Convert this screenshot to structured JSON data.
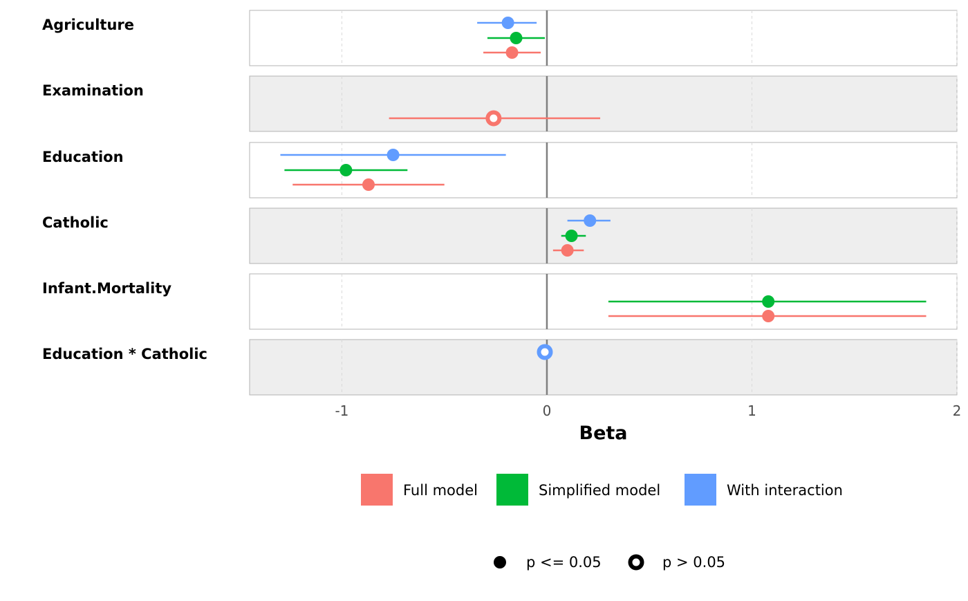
{
  "chart_data": {
    "type": "forest",
    "xlabel": "Beta",
    "xlim": [
      -1.45,
      2.0
    ],
    "xticks": [
      -1,
      0,
      1,
      2
    ],
    "xtick_labels": [
      "-1",
      "0",
      "1",
      "2"
    ],
    "reference_line": 0,
    "series": [
      {
        "name": "Full model",
        "color": "#F8766D"
      },
      {
        "name": "Simplified model",
        "color": "#00BA38"
      },
      {
        "name": "With interaction",
        "color": "#619CFF"
      }
    ],
    "terms": [
      {
        "label": "Agriculture",
        "shaded": false,
        "estimates": [
          {
            "series": "With interaction",
            "beta": -0.19,
            "low": -0.34,
            "high": -0.05,
            "significant": true
          },
          {
            "series": "Simplified model",
            "beta": -0.15,
            "low": -0.29,
            "high": -0.01,
            "significant": true
          },
          {
            "series": "Full model",
            "beta": -0.17,
            "low": -0.31,
            "high": -0.03,
            "significant": true
          }
        ]
      },
      {
        "label": "Examination",
        "shaded": true,
        "estimates": [
          {
            "series": "Full model",
            "beta": -0.26,
            "low": -0.77,
            "high": 0.26,
            "significant": false
          }
        ]
      },
      {
        "label": "Education",
        "shaded": false,
        "estimates": [
          {
            "series": "With interaction",
            "beta": -0.75,
            "low": -1.3,
            "high": -0.2,
            "significant": true
          },
          {
            "series": "Simplified model",
            "beta": -0.98,
            "low": -1.28,
            "high": -0.68,
            "significant": true
          },
          {
            "series": "Full model",
            "beta": -0.87,
            "low": -1.24,
            "high": -0.5,
            "significant": true
          }
        ]
      },
      {
        "label": "Catholic",
        "shaded": true,
        "estimates": [
          {
            "series": "With interaction",
            "beta": 0.21,
            "low": 0.1,
            "high": 0.31,
            "significant": true
          },
          {
            "series": "Simplified model",
            "beta": 0.12,
            "low": 0.07,
            "high": 0.19,
            "significant": true
          },
          {
            "series": "Full model",
            "beta": 0.1,
            "low": 0.03,
            "high": 0.18,
            "significant": true
          }
        ]
      },
      {
        "label": "Infant.Mortality",
        "shaded": false,
        "estimates": [
          {
            "series": "Simplified model",
            "beta": 1.08,
            "low": 0.3,
            "high": 1.85,
            "significant": true
          },
          {
            "series": "Full model",
            "beta": 1.08,
            "low": 0.3,
            "high": 1.85,
            "significant": true
          }
        ]
      },
      {
        "label": "Education * Catholic",
        "shaded": true,
        "estimates": [
          {
            "series": "With interaction",
            "beta": -0.01,
            "low": -0.02,
            "high": 0.0,
            "significant": false
          }
        ]
      }
    ],
    "shape_legend": [
      "p <= 0.05",
      "p > 0.05"
    ]
  }
}
